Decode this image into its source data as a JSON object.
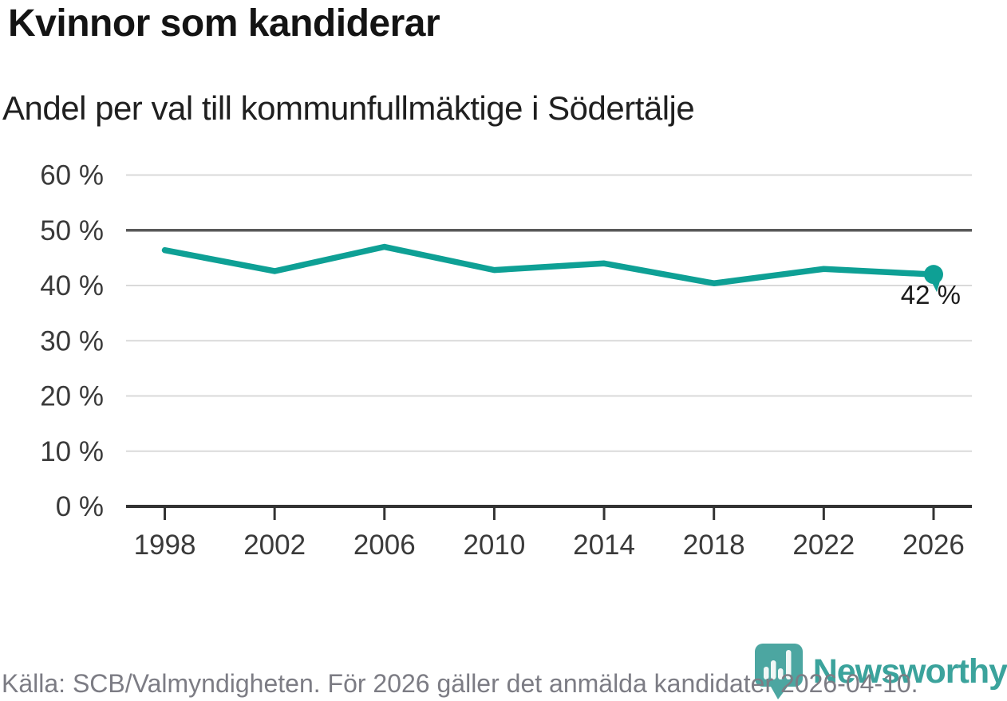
{
  "chart_data": {
    "type": "line",
    "title": "Kvinnor som kandiderar",
    "subtitle": "Andel per val till kommunfullmäktige i Södertälje",
    "categories": [
      "1998",
      "2002",
      "2006",
      "2010",
      "2014",
      "2018",
      "2022",
      "2026"
    ],
    "values": [
      46.4,
      42.6,
      47.0,
      42.8,
      44.0,
      40.4,
      43.0,
      42.0
    ],
    "xlabel": "",
    "ylabel": "",
    "ylim": [
      0,
      60
    ],
    "y_ticks": [
      0,
      10,
      20,
      30,
      40,
      50,
      60
    ],
    "y_tick_suffix": " %",
    "reference_gridline": 50,
    "end_annotation": "42 %",
    "grid": true,
    "legend": "none",
    "line_color": "#0ea095",
    "marker_color": "#0ea095"
  },
  "footer": {
    "source_text": "Källa: SCB/Valmyndigheten. För 2026 gäller det anmälda kandidater 2026-04-10.",
    "brand": "Newsworthy",
    "brand_color": "#3ba39c",
    "logo_color": "#4ca6a1",
    "logo_bar_color": "#f2f7f6"
  }
}
